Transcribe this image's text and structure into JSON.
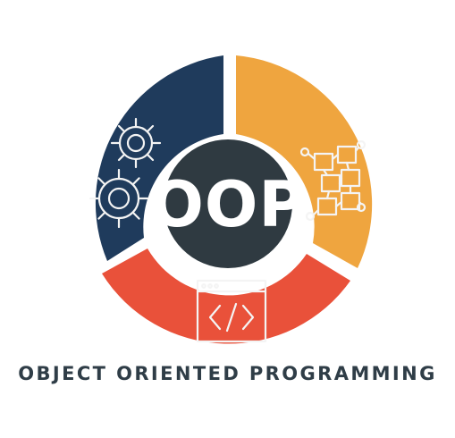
{
  "logo": {
    "center_label": "OOP",
    "caption": "OBJECT ORIENTED PROGRAMMING",
    "icons": {
      "left": "gears-icon",
      "right": "class-diagram-icon",
      "bottom": "code-window-icon"
    }
  },
  "colors": {
    "navy": "#1f3b5c",
    "orange": "#efa53f",
    "red": "#e9513a",
    "center": "#2f3a41",
    "icon_stroke": "#f4f4f4",
    "caption": "#2f3d47"
  }
}
